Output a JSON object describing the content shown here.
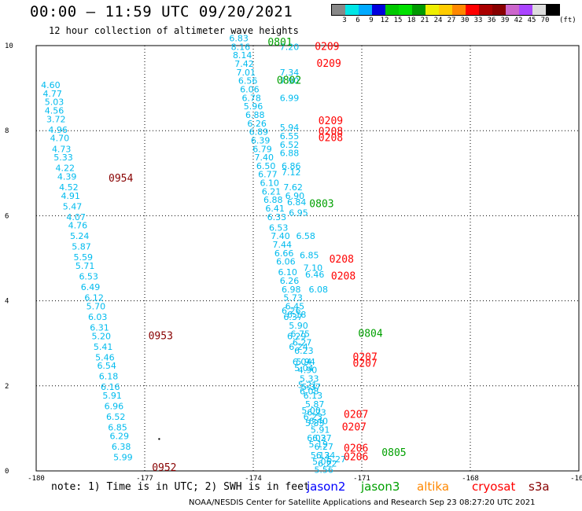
{
  "header": {
    "title": "00:00 – 11:59 UTC 09/20/2021",
    "subtitle": "12 hour collection of altimeter wave heights"
  },
  "colorbar": {
    "unit": "(ft)",
    "colors": [
      "#888888",
      "#00e6e6",
      "#00aaff",
      "#0000dd",
      "#00c800",
      "#00e000",
      "#009900",
      "#eeee00",
      "#ffcc00",
      "#ff8800",
      "#ff0000",
      "#aa0000",
      "#880000",
      "#cc66cc",
      "#aa44ff",
      "#dddddd",
      "#000000"
    ],
    "labels": [
      "3",
      "6",
      "9",
      "12",
      "15",
      "18",
      "21",
      "24",
      "27",
      "30",
      "33",
      "36",
      "39",
      "42",
      "45",
      "70"
    ]
  },
  "chart_data": {
    "type": "scatter",
    "xlim": [
      -180,
      -165
    ],
    "ylim": [
      0,
      10
    ],
    "xticks": [
      "-180",
      "-177",
      "-174",
      "-171",
      "-168",
      "-165"
    ],
    "yticks": [
      "0",
      "2",
      "4",
      "6",
      "8",
      "10"
    ],
    "grid": true,
    "series_colors": {
      "jason2": "#0000ff",
      "jason3": "#00a000",
      "altika": "#ff8800",
      "cryosat": "#ff0000",
      "s3a": "#880000",
      "wave": "#00bbee"
    },
    "wave_heights": [
      {
        "lon": -179.6,
        "lat": 9.0,
        "v": "4.60"
      },
      {
        "lon": -179.55,
        "lat": 8.8,
        "v": "4.77"
      },
      {
        "lon": -179.5,
        "lat": 8.6,
        "v": "5.03"
      },
      {
        "lon": -179.5,
        "lat": 8.4,
        "v": "4.56"
      },
      {
        "lon": -179.45,
        "lat": 8.2,
        "v": "3.72"
      },
      {
        "lon": -179.4,
        "lat": 7.95,
        "v": "4.96"
      },
      {
        "lon": -179.35,
        "lat": 7.75,
        "v": "4.70"
      },
      {
        "lon": -179.3,
        "lat": 7.5,
        "v": "4.73"
      },
      {
        "lon": -179.25,
        "lat": 7.3,
        "v": "5.33"
      },
      {
        "lon": -179.2,
        "lat": 7.05,
        "v": "4.22"
      },
      {
        "lon": -179.15,
        "lat": 6.85,
        "v": "4.39"
      },
      {
        "lon": -179.1,
        "lat": 6.6,
        "v": "4.52"
      },
      {
        "lon": -179.05,
        "lat": 6.4,
        "v": "4.91"
      },
      {
        "lon": -179.0,
        "lat": 6.15,
        "v": "5.47"
      },
      {
        "lon": -178.9,
        "lat": 5.9,
        "v": "4.07"
      },
      {
        "lon": -178.85,
        "lat": 5.7,
        "v": "4.76"
      },
      {
        "lon": -178.8,
        "lat": 5.45,
        "v": "5.24"
      },
      {
        "lon": -178.75,
        "lat": 5.2,
        "v": "5.87"
      },
      {
        "lon": -178.7,
        "lat": 4.95,
        "v": "5.59"
      },
      {
        "lon": -178.65,
        "lat": 4.75,
        "v": "5.71"
      },
      {
        "lon": -178.55,
        "lat": 4.5,
        "v": "6.53"
      },
      {
        "lon": -178.5,
        "lat": 4.25,
        "v": "6.49"
      },
      {
        "lon": -178.4,
        "lat": 4.0,
        "v": "6.12"
      },
      {
        "lon": -178.35,
        "lat": 3.8,
        "v": "5.70"
      },
      {
        "lon": -178.3,
        "lat": 3.55,
        "v": "6.03"
      },
      {
        "lon": -178.25,
        "lat": 3.3,
        "v": "6.31"
      },
      {
        "lon": -178.2,
        "lat": 3.1,
        "v": "5.20"
      },
      {
        "lon": -178.15,
        "lat": 2.85,
        "v": "5.41"
      },
      {
        "lon": -178.1,
        "lat": 2.6,
        "v": "5.46"
      },
      {
        "lon": -178.05,
        "lat": 2.4,
        "v": "6.54"
      },
      {
        "lon": -178.0,
        "lat": 2.15,
        "v": "6.18"
      },
      {
        "lon": -177.95,
        "lat": 1.9,
        "v": "6.16"
      },
      {
        "lon": -177.9,
        "lat": 1.7,
        "v": "5.91"
      },
      {
        "lon": -177.85,
        "lat": 1.45,
        "v": "6.96"
      },
      {
        "lon": -177.8,
        "lat": 1.2,
        "v": "6.52"
      },
      {
        "lon": -177.75,
        "lat": 0.95,
        "v": "6.85"
      },
      {
        "lon": -177.7,
        "lat": 0.75,
        "v": "6.29"
      },
      {
        "lon": -177.65,
        "lat": 0.5,
        "v": "6.38"
      },
      {
        "lon": -177.6,
        "lat": 0.25,
        "v": "5.99"
      },
      {
        "lon": -174.4,
        "lat": 10.1,
        "v": "6.83"
      },
      {
        "lon": -174.35,
        "lat": 9.9,
        "v": "8.16"
      },
      {
        "lon": -174.3,
        "lat": 9.7,
        "v": "8.14"
      },
      {
        "lon": -174.25,
        "lat": 9.5,
        "v": "7.42"
      },
      {
        "lon": -174.2,
        "lat": 9.3,
        "v": "7.01"
      },
      {
        "lon": -174.15,
        "lat": 9.1,
        "v": "6.56"
      },
      {
        "lon": -174.1,
        "lat": 8.9,
        "v": "6.06"
      },
      {
        "lon": -174.05,
        "lat": 8.7,
        "v": "6.78"
      },
      {
        "lon": -174.0,
        "lat": 8.5,
        "v": "5.96"
      },
      {
        "lon": -173.95,
        "lat": 8.3,
        "v": "6.88"
      },
      {
        "lon": -173.9,
        "lat": 8.1,
        "v": "6.26"
      },
      {
        "lon": -173.85,
        "lat": 7.9,
        "v": "6.89"
      },
      {
        "lon": -173.8,
        "lat": 7.7,
        "v": "6.39"
      },
      {
        "lon": -173.75,
        "lat": 7.5,
        "v": "6.79"
      },
      {
        "lon": -173.7,
        "lat": 7.3,
        "v": "7.40"
      },
      {
        "lon": -173.65,
        "lat": 7.1,
        "v": "6.50"
      },
      {
        "lon": -173.6,
        "lat": 6.9,
        "v": "6.77"
      },
      {
        "lon": -173.55,
        "lat": 6.7,
        "v": "6.10"
      },
      {
        "lon": -173.5,
        "lat": 6.5,
        "v": "6.21"
      },
      {
        "lon": -173.45,
        "lat": 6.3,
        "v": "6.88"
      },
      {
        "lon": -173.4,
        "lat": 6.1,
        "v": "6.41"
      },
      {
        "lon": -173.35,
        "lat": 5.9,
        "v": "6.33"
      },
      {
        "lon": -173.3,
        "lat": 5.65,
        "v": "6.53"
      },
      {
        "lon": -173.25,
        "lat": 5.45,
        "v": "7.40"
      },
      {
        "lon": -173.2,
        "lat": 5.25,
        "v": "7.44"
      },
      {
        "lon": -173.15,
        "lat": 5.05,
        "v": "6.66"
      },
      {
        "lon": -173.1,
        "lat": 4.85,
        "v": "6.06"
      },
      {
        "lon": -173.05,
        "lat": 4.6,
        "v": "6.10"
      },
      {
        "lon": -173.0,
        "lat": 4.4,
        "v": "6.26"
      },
      {
        "lon": -172.95,
        "lat": 4.2,
        "v": "6.98"
      },
      {
        "lon": -172.9,
        "lat": 4.0,
        "v": "5.73"
      },
      {
        "lon": -172.85,
        "lat": 3.8,
        "v": "6.45"
      },
      {
        "lon": -172.8,
        "lat": 3.6,
        "v": "6.18"
      },
      {
        "lon": -172.75,
        "lat": 3.35,
        "v": "5.90"
      },
      {
        "lon": -172.7,
        "lat": 3.15,
        "v": "6.75"
      },
      {
        "lon": -172.65,
        "lat": 2.95,
        "v": "6.27"
      },
      {
        "lon": -172.6,
        "lat": 2.75,
        "v": "6.23"
      },
      {
        "lon": -172.55,
        "lat": 2.5,
        "v": "5.94"
      },
      {
        "lon": -172.5,
        "lat": 2.3,
        "v": "4.90"
      },
      {
        "lon": -172.45,
        "lat": 2.1,
        "v": "5.33"
      },
      {
        "lon": -172.4,
        "lat": 1.9,
        "v": "5.37"
      },
      {
        "lon": -172.35,
        "lat": 1.7,
        "v": "6.13"
      },
      {
        "lon": -172.3,
        "lat": 1.5,
        "v": "5.87"
      },
      {
        "lon": -172.25,
        "lat": 1.3,
        "v": "6.23"
      },
      {
        "lon": -172.2,
        "lat": 1.1,
        "v": "6.40"
      },
      {
        "lon": -172.15,
        "lat": 0.9,
        "v": "5.91"
      },
      {
        "lon": -172.1,
        "lat": 0.7,
        "v": "6.27"
      },
      {
        "lon": -172.05,
        "lat": 0.5,
        "v": "6.27"
      },
      {
        "lon": -172.0,
        "lat": 0.3,
        "v": "6.24"
      },
      {
        "lon": -171.95,
        "lat": 0.1,
        "v": "6.22"
      },
      {
        "lon": -173.0,
        "lat": 9.9,
        "v": "7.20"
      },
      {
        "lon": -173.0,
        "lat": 9.3,
        "v": "7.34"
      },
      {
        "lon": -173.0,
        "lat": 9.1,
        "v": "7.90"
      },
      {
        "lon": -173.0,
        "lat": 8.7,
        "v": "6.99"
      },
      {
        "lon": -173.0,
        "lat": 8.0,
        "v": "5.94"
      },
      {
        "lon": -173.0,
        "lat": 7.8,
        "v": "6.55"
      },
      {
        "lon": -173.0,
        "lat": 7.6,
        "v": "6.52"
      },
      {
        "lon": -173.0,
        "lat": 7.4,
        "v": "6.88"
      },
      {
        "lon": -172.95,
        "lat": 7.1,
        "v": "6.86"
      },
      {
        "lon": -172.95,
        "lat": 6.95,
        "v": "7.12"
      },
      {
        "lon": -172.9,
        "lat": 6.6,
        "v": "7.62"
      },
      {
        "lon": -172.85,
        "lat": 6.4,
        "v": "6.90"
      },
      {
        "lon": -172.8,
        "lat": 6.25,
        "v": "6.84"
      },
      {
        "lon": -172.75,
        "lat": 6.0,
        "v": "6.95"
      },
      {
        "lon": -172.55,
        "lat": 5.45,
        "v": "6.58"
      },
      {
        "lon": -172.45,
        "lat": 5.0,
        "v": "6.85"
      },
      {
        "lon": -172.35,
        "lat": 4.7,
        "v": "7.10"
      },
      {
        "lon": -172.3,
        "lat": 4.55,
        "v": "6.46"
      },
      {
        "lon": -172.2,
        "lat": 4.2,
        "v": "6.08"
      },
      {
        "lon": -172.95,
        "lat": 3.7,
        "v": "6.26"
      },
      {
        "lon": -172.9,
        "lat": 3.55,
        "v": "6.37"
      },
      {
        "lon": -172.8,
        "lat": 3.1,
        "v": "6.29"
      },
      {
        "lon": -172.75,
        "lat": 2.85,
        "v": "6.24"
      },
      {
        "lon": -172.65,
        "lat": 2.5,
        "v": "6.04"
      },
      {
        "lon": -172.6,
        "lat": 2.35,
        "v": "5.04"
      },
      {
        "lon": -172.5,
        "lat": 1.95,
        "v": "5.21"
      },
      {
        "lon": -172.45,
        "lat": 1.8,
        "v": "6.08"
      },
      {
        "lon": -172.4,
        "lat": 1.35,
        "v": "5.00"
      },
      {
        "lon": -172.35,
        "lat": 1.2,
        "v": "6.23"
      },
      {
        "lon": -172.3,
        "lat": 1.05,
        "v": "5.83"
      },
      {
        "lon": -172.25,
        "lat": 0.7,
        "v": "6.03"
      },
      {
        "lon": -172.2,
        "lat": 0.55,
        "v": "5.19"
      },
      {
        "lon": -172.15,
        "lat": 0.3,
        "v": "5.13"
      },
      {
        "lon": -172.1,
        "lat": 0.15,
        "v": "5.06"
      },
      {
        "lon": -172.05,
        "lat": -0.05,
        "v": "5.56"
      },
      {
        "lon": -171.7,
        "lat": 0.2,
        "v": "5.27"
      }
    ],
    "pass_labels": [
      {
        "lon": -178.0,
        "lat": 6.8,
        "text": "0954",
        "mission": "s3a"
      },
      {
        "lon": -176.9,
        "lat": 3.1,
        "text": "0953",
        "mission": "s3a"
      },
      {
        "lon": -176.8,
        "lat": 0.0,
        "text": "0952",
        "mission": "s3a"
      },
      {
        "lon": -173.6,
        "lat": 10.0,
        "text": "0801",
        "mission": "jason3"
      },
      {
        "lon": -173.35,
        "lat": 9.1,
        "text": "0802",
        "mission": "jason3"
      },
      {
        "lon": -172.45,
        "lat": 6.2,
        "text": "0803",
        "mission": "jason3"
      },
      {
        "lon": -171.1,
        "lat": 3.15,
        "text": "0804",
        "mission": "jason3"
      },
      {
        "lon": -170.45,
        "lat": 0.35,
        "text": "0805",
        "mission": "jason3"
      },
      {
        "lon": -172.3,
        "lat": 9.9,
        "text": "0209",
        "mission": "cryosat"
      },
      {
        "lon": -172.25,
        "lat": 9.5,
        "text": "0209",
        "mission": "cryosat"
      },
      {
        "lon": -172.2,
        "lat": 8.15,
        "text": "0209",
        "mission": "cryosat"
      },
      {
        "lon": -172.2,
        "lat": 7.9,
        "text": "0208",
        "mission": "cryosat"
      },
      {
        "lon": -172.2,
        "lat": 7.75,
        "text": "0208",
        "mission": "cryosat"
      },
      {
        "lon": -171.9,
        "lat": 4.9,
        "text": "0208",
        "mission": "cryosat"
      },
      {
        "lon": -171.85,
        "lat": 4.5,
        "text": "0208",
        "mission": "cryosat"
      },
      {
        "lon": -171.25,
        "lat": 2.6,
        "text": "0207",
        "mission": "cryosat"
      },
      {
        "lon": -171.25,
        "lat": 2.45,
        "text": "0207",
        "mission": "cryosat"
      },
      {
        "lon": -171.5,
        "lat": 1.25,
        "text": "0207",
        "mission": "cryosat"
      },
      {
        "lon": -171.55,
        "lat": 0.95,
        "text": "0207",
        "mission": "cryosat"
      },
      {
        "lon": -171.5,
        "lat": 0.45,
        "text": "0206",
        "mission": "cryosat"
      },
      {
        "lon": -171.5,
        "lat": 0.25,
        "text": "0206",
        "mission": "cryosat"
      }
    ]
  },
  "footer": {
    "note": "note: 1) Time is in UTC; 2) SWH is in feet",
    "missions": [
      {
        "name": "jason2",
        "color": "#0000ff"
      },
      {
        "name": "jason3",
        "color": "#00a000"
      },
      {
        "name": "altika",
        "color": "#ff8800"
      },
      {
        "name": "cryosat",
        "color": "#ff0000"
      },
      {
        "name": "s3a",
        "color": "#880000"
      }
    ],
    "credit": "NOAA/NESDIS Center for Satellite Applications and Research   Sep 23 08:27:20 UTC 2021"
  }
}
